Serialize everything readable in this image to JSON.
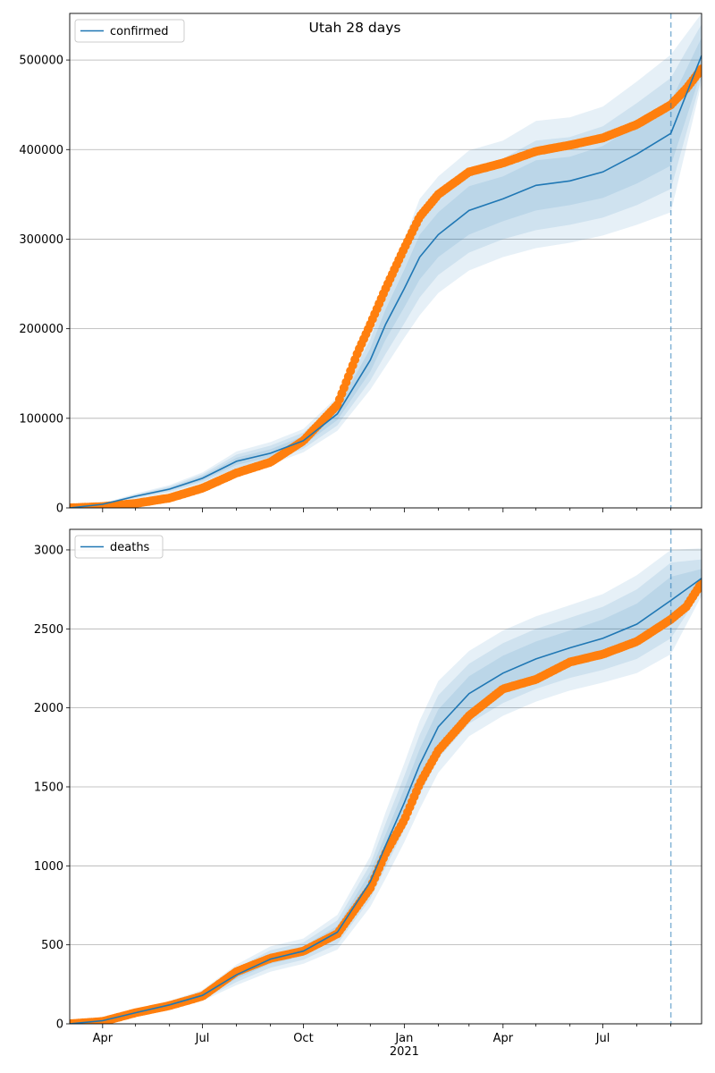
{
  "title": "Utah 28 days",
  "colors": {
    "model": "#1f77b4",
    "observed": "#ff7f0e",
    "band": "#1f77b4",
    "grid": "#b0b0b0",
    "forecast_line": "#1f77b4"
  },
  "x_axis": {
    "month_ticks": [
      {
        "date": "2020-04-01",
        "label": "Apr"
      },
      {
        "date": "2020-07-01",
        "label": "Jul"
      },
      {
        "date": "2020-10-01",
        "label": "Oct"
      },
      {
        "date": "2021-01-01",
        "label": "Jan"
      },
      {
        "date": "2021-04-01",
        "label": "Apr"
      },
      {
        "date": "2021-07-01",
        "label": "Jul"
      }
    ],
    "year_label": "2021",
    "xlim": [
      "2020-03-02",
      "2021-09-29"
    ],
    "forecast_start": "2021-09-01"
  },
  "chart_data": [
    {
      "type": "line",
      "legend": "confirmed",
      "legend_placement": "top-left",
      "grid": "horizontal",
      "ylim": [
        0,
        552000
      ],
      "yticks": [
        0,
        100000,
        200000,
        300000,
        400000,
        500000
      ],
      "ytick_labels": [
        "0",
        "100000",
        "200000",
        "300000",
        "400000",
        "500000"
      ],
      "model": {
        "x": [
          "2020-03-02",
          "2020-04-01",
          "2020-05-01",
          "2020-06-01",
          "2020-07-01",
          "2020-08-01",
          "2020-09-01",
          "2020-10-01",
          "2020-11-01",
          "2020-12-01",
          "2020-12-15",
          "2021-01-01",
          "2021-01-15",
          "2021-02-01",
          "2021-03-01",
          "2021-04-01",
          "2021-05-01",
          "2021-06-01",
          "2021-07-01",
          "2021-08-01",
          "2021-09-01"
        ],
        "y": [
          0,
          4000,
          13000,
          21000,
          33000,
          52000,
          61000,
          75000,
          105000,
          165000,
          205000,
          245000,
          280000,
          305000,
          332000,
          345000,
          360000,
          365000,
          375000,
          395000,
          418000
        ],
        "bands": [
          {
            "lower": [
              0,
              3600,
              12000,
              19500,
              30500,
              48000,
              56500,
              70000,
              98000,
              152000,
              188000,
              224000,
              255000,
              280000,
              305000,
              320000,
              332000,
              338000,
              346000,
              362000,
              382000
            ],
            "upper": [
              0,
              4400,
              14000,
              22500,
              35500,
              56000,
              65500,
              80000,
              112000,
              178000,
              222000,
              266000,
              305000,
              330000,
              359000,
              370000,
              388000,
              392000,
              404000,
              428000,
              454000
            ]
          },
          {
            "lower": [
              0,
              3300,
              11000,
              18000,
              28500,
              44500,
              52500,
              66000,
              92000,
              142000,
              172000,
              206000,
              235000,
              260000,
              285000,
              300000,
              310000,
              316000,
              324000,
              338000,
              356000
            ],
            "upper": [
              0,
              4700,
              15000,
              24000,
              37500,
              59500,
              69500,
              84000,
              118000,
              188000,
              238000,
              284000,
              325000,
              350000,
              379000,
              390000,
              410000,
              414000,
              426000,
              452000,
              480000
            ]
          },
          {
            "lower": [
              0,
              3000,
              10000,
              16500,
              26500,
              41000,
              48500,
              62000,
              86000,
              132000,
              158000,
              190000,
              215000,
              240000,
              265000,
              280000,
              290000,
              296000,
              304000,
              316000,
              330000
            ],
            "upper": [
              0,
              5000,
              16000,
              25500,
              39500,
              63000,
              73500,
              88000,
              124000,
              198000,
              252000,
              300000,
              345000,
              370000,
              399000,
              410000,
              432000,
              436000,
              448000,
              476000,
              506000
            ]
          }
        ]
      },
      "observed": {
        "x": [
          "2020-03-02",
          "2020-04-01",
          "2020-05-01",
          "2020-06-01",
          "2020-07-01",
          "2020-08-01",
          "2020-09-01",
          "2020-10-01",
          "2020-11-01",
          "2020-11-20",
          "2020-12-01",
          "2020-12-15",
          "2021-01-01",
          "2021-01-15",
          "2021-02-01",
          "2021-03-01",
          "2021-04-01",
          "2021-05-01",
          "2021-06-01",
          "2021-07-01",
          "2021-08-01",
          "2021-09-01",
          "2021-09-15",
          "2021-09-29"
        ],
        "y": [
          0,
          1500,
          5000,
          11000,
          22000,
          39000,
          51000,
          75000,
          115000,
          175000,
          205000,
          245000,
          290000,
          325000,
          350000,
          375000,
          385000,
          398000,
          405000,
          413000,
          428000,
          450000,
          468000,
          490000
        ]
      },
      "extension": {
        "x": [
          "2021-09-01",
          "2021-09-29"
        ],
        "y": [
          418000,
          505000
        ],
        "bands": [
          {
            "lower": [
              382000,
              488000
            ],
            "upper": [
              454000,
              525000
            ]
          },
          {
            "lower": [
              356000,
              480000
            ],
            "upper": [
              480000,
              540000
            ]
          },
          {
            "lower": [
              330000,
              474000
            ],
            "upper": [
              506000,
              552000
            ]
          }
        ]
      }
    },
    {
      "type": "line",
      "legend": "deaths",
      "legend_placement": "top-left",
      "grid": "horizontal",
      "ylim": [
        0,
        3130
      ],
      "yticks": [
        0,
        500,
        1000,
        1500,
        2000,
        2500,
        3000
      ],
      "ytick_labels": [
        "0",
        "500",
        "1000",
        "1500",
        "2000",
        "2500",
        "3000"
      ],
      "model": {
        "x": [
          "2020-03-02",
          "2020-04-01",
          "2020-05-01",
          "2020-06-01",
          "2020-07-01",
          "2020-08-01",
          "2020-09-01",
          "2020-10-01",
          "2020-11-01",
          "2020-12-01",
          "2020-12-15",
          "2021-01-01",
          "2021-01-15",
          "2021-02-01",
          "2021-03-01",
          "2021-04-01",
          "2021-05-01",
          "2021-06-01",
          "2021-07-01",
          "2021-08-01",
          "2021-09-01"
        ],
        "y": [
          0,
          20,
          70,
          120,
          180,
          310,
          410,
          460,
          580,
          900,
          1130,
          1400,
          1640,
          1880,
          2090,
          2220,
          2310,
          2380,
          2440,
          2530,
          2680
        ],
        "bands": [
          {
            "lower": [
              0,
              18,
              63,
              110,
              165,
              285,
              380,
              430,
              540,
              840,
              1060,
              1310,
              1540,
              1770,
              1980,
              2110,
              2200,
              2270,
              2320,
              2400,
              2530
            ],
            "upper": [
              0,
              22,
              77,
              130,
              195,
              335,
              440,
              490,
              620,
              960,
              1200,
              1490,
              1740,
              1990,
              2200,
              2330,
              2420,
              2490,
              2560,
              2660,
              2830
            ]
          },
          {
            "lower": [
              0,
              16,
              58,
              102,
              155,
              265,
              355,
              405,
              505,
              790,
              990,
              1230,
              1450,
              1680,
              1900,
              2030,
              2120,
              2190,
              2240,
              2310,
              2440
            ],
            "upper": [
              0,
              24,
              82,
              138,
              205,
              355,
              465,
              515,
              655,
              1010,
              1270,
              1570,
              1830,
              2080,
              2280,
              2410,
              2500,
              2570,
              2640,
              2750,
              2920
            ]
          },
          {
            "lower": [
              0,
              14,
              53,
              95,
              145,
              245,
              330,
              380,
              470,
              740,
              920,
              1150,
              1360,
              1590,
              1820,
              1950,
              2040,
              2110,
              2160,
              2220,
              2340
            ],
            "upper": [
              0,
              26,
              87,
              145,
              215,
              375,
              490,
              540,
              690,
              1060,
              1340,
              1650,
              1920,
              2170,
              2360,
              2490,
              2580,
              2650,
              2720,
              2840,
              3000
            ]
          }
        ]
      },
      "observed": {
        "x": [
          "2020-03-02",
          "2020-04-01",
          "2020-05-01",
          "2020-06-01",
          "2020-07-01",
          "2020-08-01",
          "2020-09-01",
          "2020-10-01",
          "2020-11-01",
          "2020-12-01",
          "2020-12-15",
          "2021-01-01",
          "2021-01-15",
          "2021-02-01",
          "2021-03-01",
          "2021-04-01",
          "2021-05-01",
          "2021-06-01",
          "2021-07-01",
          "2021-08-01",
          "2021-09-01",
          "2021-09-15",
          "2021-09-29"
        ],
        "y": [
          0,
          15,
          70,
          115,
          175,
          330,
          415,
          460,
          570,
          860,
          1080,
          1290,
          1520,
          1730,
          1950,
          2120,
          2180,
          2290,
          2340,
          2420,
          2560,
          2640,
          2790
        ]
      },
      "extension": {
        "x": [
          "2021-09-01",
          "2021-09-29"
        ],
        "y": [
          2680,
          2820
        ],
        "bands": [
          {
            "lower": [
              2530,
              2770
            ],
            "upper": [
              2830,
              2880
            ]
          },
          {
            "lower": [
              2440,
              2740
            ],
            "upper": [
              2920,
              2940
            ]
          },
          {
            "lower": [
              2340,
              2710
            ],
            "upper": [
              3000,
              3010
            ]
          }
        ]
      }
    }
  ]
}
